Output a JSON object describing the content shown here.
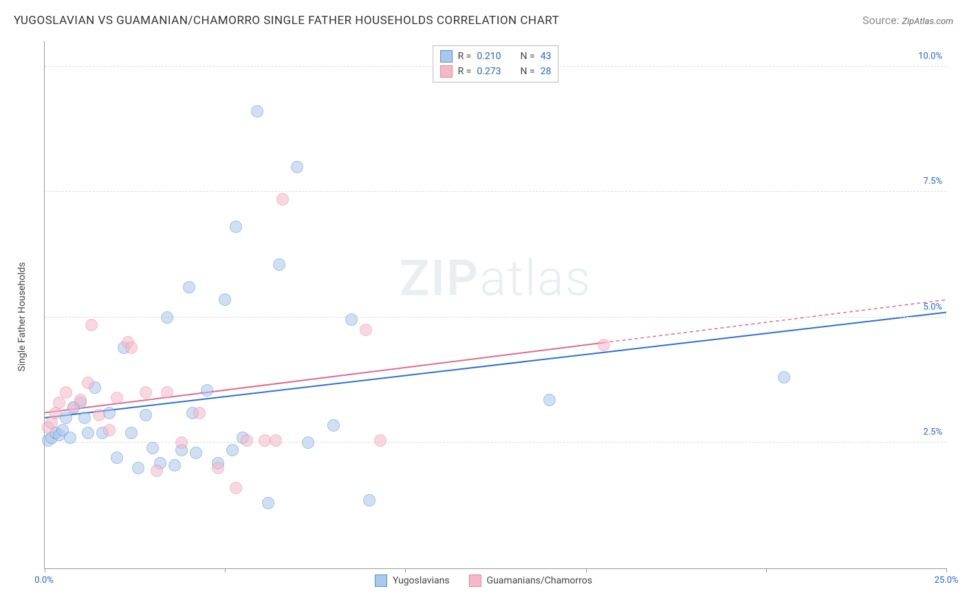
{
  "title": "YUGOSLAVIAN VS GUAMANIAN/CHAMORRO SINGLE FATHER HOUSEHOLDS CORRELATION CHART",
  "source_label": "Source:",
  "source_value": "ZipAtlas.com",
  "ylabel": "Single Father Households",
  "watermark_bold": "ZIP",
  "watermark_light": "atlas",
  "chart": {
    "type": "scatter",
    "xlim": [
      0,
      25
    ],
    "ylim": [
      0,
      10.5
    ],
    "x_ticks": [
      0,
      5,
      10,
      15,
      20,
      25
    ],
    "x_tick_labels": {
      "0": "0.0%",
      "25": "25.0%"
    },
    "y_gridlines": [
      2.5,
      5.0,
      7.5,
      10.0
    ],
    "y_tick_labels": {
      "2.5": "2.5%",
      "5.0": "5.0%",
      "7.5": "7.5%",
      "10.0": "10.0%"
    },
    "background_color": "#ffffff",
    "grid_color": "#dddddd",
    "axis_color": "#999999",
    "xtick_label_color": "#2266cc",
    "ytick_label_color": "#2266cc",
    "marker_radius": 9,
    "marker_opacity": 0.55,
    "marker_border_opacity": 0.9
  },
  "series": [
    {
      "key": "yugoslavians",
      "label": "Yugoslavians",
      "fill": "#a8c8ec",
      "stroke": "#5b8fd0",
      "line_color": "#2a6fd6",
      "R": "0.210",
      "N": "43",
      "trend": {
        "x1": 0,
        "y1": 3.0,
        "x2": 25,
        "y2": 5.1,
        "solid_until_x": 25
      },
      "points": [
        [
          0.1,
          2.55
        ],
        [
          0.2,
          2.6
        ],
        [
          0.3,
          2.7
        ],
        [
          0.4,
          2.65
        ],
        [
          0.5,
          2.75
        ],
        [
          0.6,
          3.0
        ],
        [
          0.7,
          2.6
        ],
        [
          0.8,
          3.2
        ],
        [
          1.0,
          3.3
        ],
        [
          1.1,
          3.0
        ],
        [
          1.2,
          2.7
        ],
        [
          1.4,
          3.6
        ],
        [
          1.6,
          2.7
        ],
        [
          1.8,
          3.1
        ],
        [
          2.0,
          2.2
        ],
        [
          2.2,
          4.4
        ],
        [
          2.4,
          2.7
        ],
        [
          2.6,
          2.0
        ],
        [
          2.8,
          3.05
        ],
        [
          3.0,
          2.4
        ],
        [
          3.2,
          2.1
        ],
        [
          3.4,
          5.0
        ],
        [
          3.6,
          2.05
        ],
        [
          3.8,
          2.35
        ],
        [
          4.0,
          5.6
        ],
        [
          4.1,
          3.1
        ],
        [
          4.2,
          2.3
        ],
        [
          4.5,
          3.55
        ],
        [
          4.8,
          2.1
        ],
        [
          5.0,
          5.35
        ],
        [
          5.2,
          2.35
        ],
        [
          5.3,
          6.8
        ],
        [
          5.5,
          2.6
        ],
        [
          5.9,
          9.1
        ],
        [
          6.2,
          1.3
        ],
        [
          6.5,
          6.05
        ],
        [
          7.0,
          8.0
        ],
        [
          7.3,
          2.5
        ],
        [
          8.0,
          2.85
        ],
        [
          8.5,
          4.95
        ],
        [
          9.0,
          1.35
        ],
        [
          14.0,
          3.35
        ],
        [
          20.5,
          3.8
        ]
      ]
    },
    {
      "key": "guamanians",
      "label": "Guamanians/Chamorros",
      "fill": "#f5b8c8",
      "stroke": "#e389a3",
      "line_color": "#e06a8a",
      "R": "0.273",
      "N": "28",
      "trend": {
        "x1": 0,
        "y1": 3.1,
        "x2": 25,
        "y2": 5.35,
        "solid_until_x": 15.5
      },
      "points": [
        [
          0.1,
          2.8
        ],
        [
          0.2,
          2.9
        ],
        [
          0.3,
          3.1
        ],
        [
          0.4,
          3.3
        ],
        [
          0.6,
          3.5
        ],
        [
          0.8,
          3.2
        ],
        [
          1.0,
          3.35
        ],
        [
          1.2,
          3.7
        ],
        [
          1.3,
          4.85
        ],
        [
          1.5,
          3.05
        ],
        [
          1.8,
          2.75
        ],
        [
          2.0,
          3.4
        ],
        [
          2.3,
          4.5
        ],
        [
          2.4,
          4.4
        ],
        [
          2.8,
          3.5
        ],
        [
          3.1,
          1.95
        ],
        [
          3.4,
          3.5
        ],
        [
          3.8,
          2.5
        ],
        [
          4.3,
          3.1
        ],
        [
          4.8,
          2.0
        ],
        [
          5.3,
          1.6
        ],
        [
          5.6,
          2.55
        ],
        [
          6.1,
          2.55
        ],
        [
          6.4,
          2.55
        ],
        [
          6.6,
          7.35
        ],
        [
          8.9,
          4.75
        ],
        [
          9.3,
          2.55
        ],
        [
          15.5,
          4.45
        ]
      ]
    }
  ],
  "legend_top": {
    "R_label": "R =",
    "N_label": "N ="
  },
  "legend_bottom_order": [
    "yugoslavians",
    "guamanians"
  ]
}
